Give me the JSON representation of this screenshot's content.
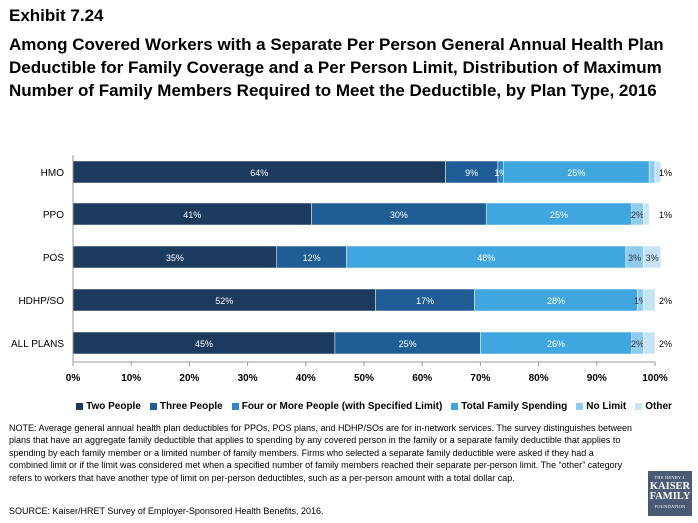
{
  "header": {
    "exhibit": "Exhibit 7.24",
    "title": "Among Covered Workers with a Separate Per Person General Annual Health Plan Deductible for Family Coverage and a Per Person Limit, Distribution of Maximum Number of Family Members Required to Meet the Deductible, by Plan Type, 2016"
  },
  "chart_data": {
    "type": "bar",
    "orientation": "horizontal",
    "stacked": true,
    "categories": [
      "HMO",
      "PPO",
      "POS",
      "HDHP/SO",
      "ALL PLANS"
    ],
    "series": [
      {
        "name": "Two People",
        "color": "#1b3a5e",
        "values": [
          64,
          41,
          35,
          52,
          45
        ]
      },
      {
        "name": "Three People",
        "color": "#1f5d94",
        "values": [
          9,
          30,
          12,
          17,
          25
        ]
      },
      {
        "name": "Four or More People (with Specified Limit)",
        "color": "#2f86c8",
        "values": [
          1,
          0,
          0,
          0,
          0
        ]
      },
      {
        "name": "Total Family Spending",
        "color": "#3fa6e0",
        "values": [
          25,
          25,
          48,
          28,
          26
        ]
      },
      {
        "name": "No Limit",
        "color": "#8ecbee",
        "values": [
          1,
          2,
          3,
          1,
          2
        ]
      },
      {
        "name": "Other",
        "color": "#c5e5f7",
        "values": [
          1,
          1,
          3,
          2,
          2
        ]
      }
    ],
    "bar_labels": [
      [
        "64%",
        "9%",
        "1%",
        "25%",
        "",
        "1%"
      ],
      [
        "41%",
        "30%",
        "",
        "25%",
        "2%",
        "1%"
      ],
      [
        "35%",
        "12%",
        "",
        "48%",
        "3%",
        "3%"
      ],
      [
        "52%",
        "17%",
        "",
        "28%",
        "1%",
        "2%"
      ],
      [
        "45%",
        "25%",
        "",
        "26%",
        "2%",
        "2%"
      ]
    ],
    "label_colors": [
      "#ffffff",
      "#ffffff",
      "#ffffff",
      "#ffffff",
      "#333333",
      "#333333"
    ],
    "xlim": [
      0,
      100
    ],
    "xticks": [
      "0%",
      "10%",
      "20%",
      "30%",
      "40%",
      "50%",
      "60%",
      "70%",
      "80%",
      "90%",
      "100%"
    ],
    "legend_position": "bottom"
  },
  "legend": {
    "items": [
      {
        "label": "Two People",
        "color": "#1b3a5e"
      },
      {
        "label": "Three People",
        "color": "#1f5d94"
      },
      {
        "label": "Four or More People (with Specified Limit)",
        "color": "#2f86c8"
      },
      {
        "label": "Total Family Spending",
        "color": "#3fa6e0"
      },
      {
        "label": "No Limit",
        "color": "#8ecbee"
      },
      {
        "label": "Other",
        "color": "#c5e5f7"
      }
    ]
  },
  "footer": {
    "note": "NOTE:  Average general annual health plan deductibles for PPOs, POS plans, and HDHP/SOs are for in-network services. The survey distinguishes between plans that have an aggregate family deductible that applies to spending by any covered person in the family or a separate family deductible that applies to spending by each family member or a limited number of family members.  Firms who selected a separate family deductible were asked if they had a combined limit or if the limit was considered met when a specified number of family members reached their separate per-person limit. The “other” category refers to workers that have another type of limit on per-person deductibles, such as a per-person amount with a total dollar cap.",
    "source": "SOURCE:  Kaiser/HRET Survey of Employer-Sponsored Health Benefits, 2016."
  },
  "logo": {
    "line1": "THE HENRY J.",
    "line2": "KAISER",
    "line3": "FAMILY",
    "line4": "FOUNDATION"
  }
}
